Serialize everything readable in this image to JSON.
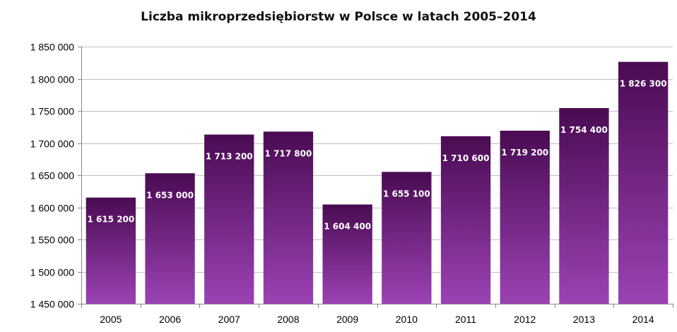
{
  "chart_data": {
    "type": "bar",
    "title": "Liczba mikroprzedsiębiorstw w Polsce w latach 2005–2014",
    "xlabel": "",
    "ylabel": "",
    "categories": [
      "2005",
      "2006",
      "2007",
      "2008",
      "2009",
      "2010",
      "2011",
      "2012",
      "2013",
      "2014"
    ],
    "values": [
      1615200,
      1653000,
      1713200,
      1717800,
      1604400,
      1655100,
      1710600,
      1719200,
      1754400,
      1826300
    ],
    "value_labels": [
      "1 615 200",
      "1 653 000",
      "1 713 200",
      "1 717 800",
      "1 604 400",
      "1 655 100",
      "1 710 600",
      "1 719 200",
      "1 754 400",
      "1 826 300"
    ],
    "ylim": [
      1450000,
      1850000
    ],
    "yticks": [
      1450000,
      1500000,
      1550000,
      1600000,
      1650000,
      1700000,
      1750000,
      1800000,
      1850000
    ],
    "ytick_labels": [
      "1 450 000",
      "1 500 000",
      "1 550 000",
      "1 600 000",
      "1 650 000",
      "1 700 000",
      "1 750 000",
      "1 800 000",
      "1 850 000"
    ],
    "grid": true,
    "legend": "none",
    "colors": {
      "bar_top": "#4a0b52",
      "bar_bottom": "#9b42b4",
      "grid": "#bfbfbf",
      "axis": "#868686",
      "label": "#ffffff"
    }
  }
}
